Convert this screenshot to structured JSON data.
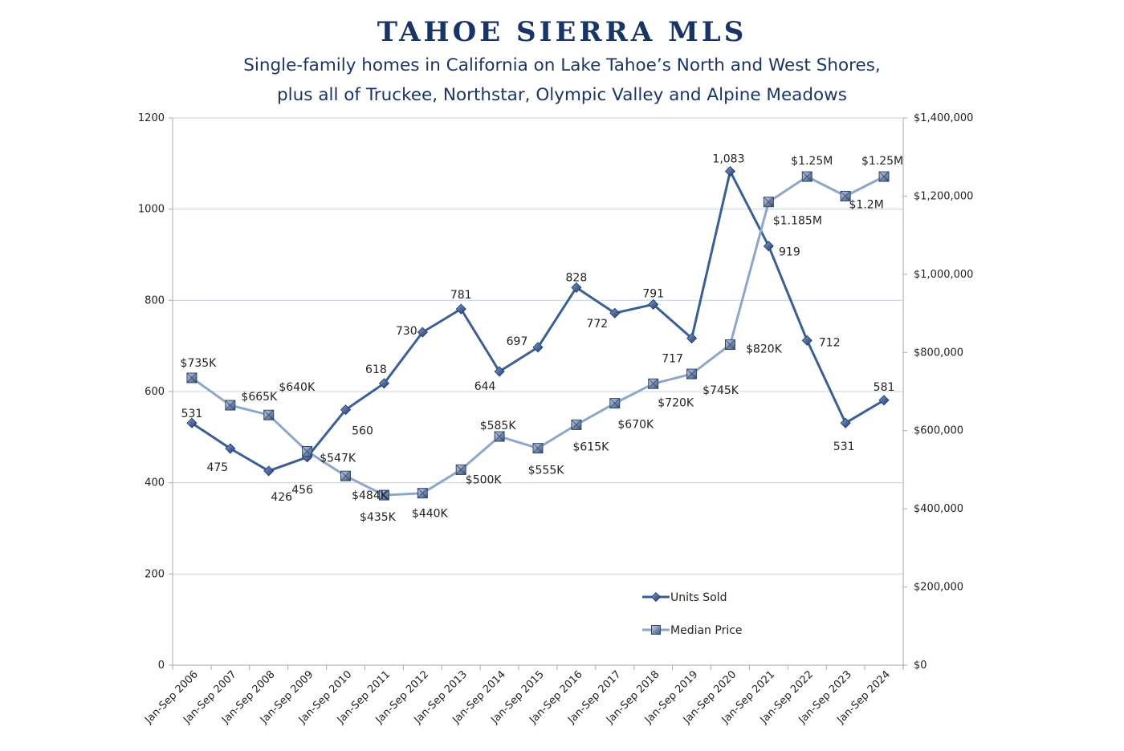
{
  "header": {
    "title": "TAHOE SIERRA MLS",
    "subtitle_line1": "Single-family homes in California on Lake Tahoe’s North and West Shores,",
    "subtitle_line2": "plus all of Truckee, Northstar, Olympic Valley and Alpine Meadows"
  },
  "colors": {
    "units": "#3a5f94",
    "price": "#8ea6ca",
    "grid": "#c6d3e3",
    "axis": "#a9a9a9"
  },
  "chart_data": {
    "type": "line",
    "title": "TAHOE SIERRA MLS",
    "categories": [
      "Jan-Sep 2006",
      "Jan-Sep 2007",
      "Jan-Sep 2008",
      "Jan-Sep 2009",
      "Jan-Sep 2010",
      "Jan-Sep 2011",
      "Jan-Sep 2012",
      "Jan-Sep 2013",
      "Jan-Sep 2014",
      "Jan-Sep 2015",
      "Jan-Sep 2016",
      "Jan-Sep 2017",
      "Jan-Sep 2018",
      "Jan-Sep 2019",
      "Jan-Sep 2020",
      "Jan-Sep 2021",
      "Jan-Sep 2022",
      "Jan-Sep 2023",
      "Jan-Sep 2024"
    ],
    "y_left": {
      "min": 0,
      "max": 1200,
      "ticks": [
        "0",
        "200",
        "400",
        "600",
        "800",
        "1000",
        "1200"
      ],
      "tick_values": [
        0,
        200,
        400,
        600,
        800,
        1000,
        1200
      ]
    },
    "y_right": {
      "min": 0,
      "max": 1400000,
      "ticks": [
        "$0",
        "$200,000",
        "$400,000",
        "$600,000",
        "$800,000",
        "$1,000,000",
        "$1,200,000",
        "$1,400,000"
      ],
      "tick_values": [
        0,
        200000,
        400000,
        600000,
        800000,
        1000000,
        1200000,
        1400000
      ]
    },
    "grid": true,
    "legend_position": "lower-right",
    "series": [
      {
        "name": "Units Sold",
        "axis": "left",
        "marker": "diamond",
        "values": [
          531,
          475,
          426,
          456,
          560,
          618,
          730,
          781,
          644,
          697,
          828,
          772,
          791,
          717,
          1083,
          919,
          712,
          531,
          581
        ],
        "labels": [
          "531",
          "475",
          "426",
          "456",
          "560",
          "618",
          "730",
          "781",
          "644",
          "697",
          "828",
          "772",
          "791",
          "717",
          "1,083",
          "919",
          "712",
          "531",
          "581"
        ]
      },
      {
        "name": "Median Price",
        "axis": "right",
        "marker": "square",
        "values": [
          735000,
          665000,
          640000,
          547000,
          484000,
          435000,
          440000,
          500000,
          585000,
          555000,
          615000,
          670000,
          720000,
          745000,
          820000,
          1185000,
          1250000,
          1200000,
          1250000
        ],
        "labels": [
          "$735K",
          "$665K",
          "$640K",
          "$547K",
          "$484K",
          "$435K",
          "$440K",
          "$500K",
          "$585K",
          "$555K",
          "$615K",
          "$670K",
          "$720K",
          "$745K",
          "$820K",
          "$1.185M",
          "$1.25M",
          "$1.2M",
          "$1.25M"
        ]
      }
    ]
  }
}
